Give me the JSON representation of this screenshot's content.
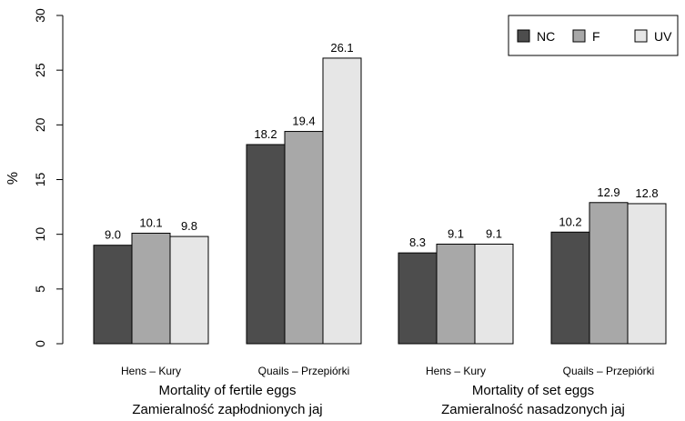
{
  "chart_data": {
    "type": "bar",
    "ylabel": "%",
    "ylim": [
      0,
      30
    ],
    "yticks": [
      0,
      5,
      10,
      15,
      20,
      25,
      30
    ],
    "legend_position": "top-right",
    "series": [
      {
        "name": "NC",
        "color": "#4d4d4d"
      },
      {
        "name": "F",
        "color": "#a8a8a8"
      },
      {
        "name": "UV",
        "color": "#e6e6e6"
      }
    ],
    "groups": [
      {
        "label": "Hens – Kury",
        "values": [
          9.0,
          10.1,
          9.8
        ],
        "value_labels": [
          "9.0",
          "10.1",
          "9.8"
        ]
      },
      {
        "label": "Quails – Przepiórki",
        "values": [
          18.2,
          19.4,
          26.1
        ],
        "value_labels": [
          "18.2",
          "19.4",
          "26.1"
        ]
      },
      {
        "label": "Hens – Kury",
        "values": [
          8.3,
          9.1,
          9.1
        ],
        "value_labels": [
          "8.3",
          "9.1",
          "9.1"
        ]
      },
      {
        "label": "Quails – Przepiórki",
        "values": [
          10.2,
          12.9,
          12.8
        ],
        "value_labels": [
          "10.2",
          "12.9",
          "12.8"
        ]
      }
    ],
    "sections": [
      {
        "title": "Mortality of fertile eggs",
        "subtitle": "Zamieralność zapłodnionych jaj"
      },
      {
        "title": "Mortality of set eggs",
        "subtitle": "Zamieralność nasadzonych jaj"
      }
    ]
  }
}
